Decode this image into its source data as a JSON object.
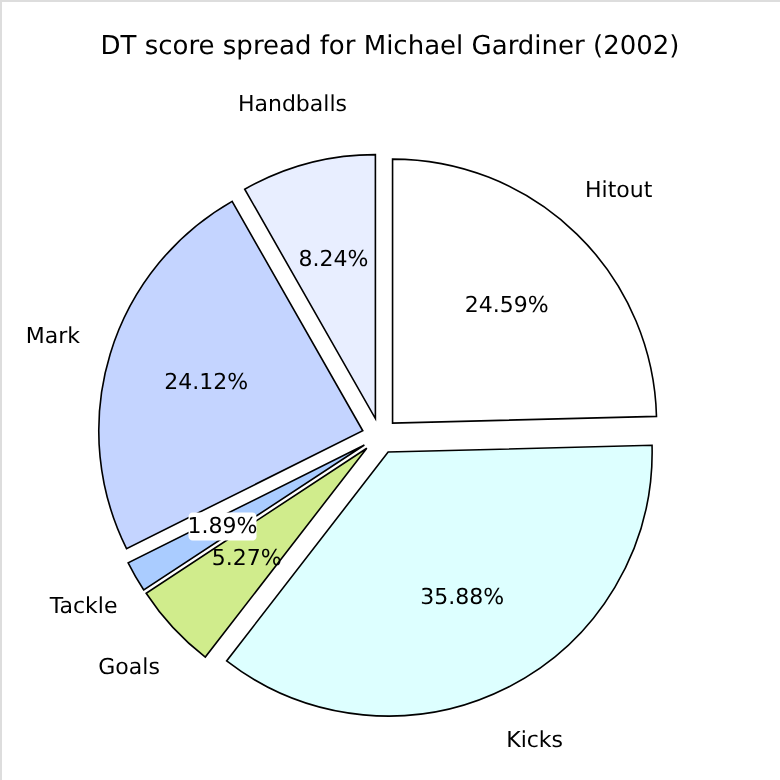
{
  "chart_data": {
    "type": "pie",
    "title": "DT score spread for Michael Gardiner (2002)",
    "categories": [
      "Hitout",
      "Kicks",
      "Goals",
      "Tackle",
      "Mark",
      "Handballs"
    ],
    "values": [
      24.59,
      35.88,
      5.27,
      1.89,
      24.12,
      8.24
    ],
    "value_labels": [
      "24.59%",
      "35.88%",
      "5.27%",
      "1.89%",
      "24.12%",
      "8.24%"
    ],
    "colors": [
      "#ffffff",
      "#ddffff",
      "#d0ec8c",
      "#aaccff",
      "#c4d4ff",
      "#e8eeff"
    ]
  }
}
